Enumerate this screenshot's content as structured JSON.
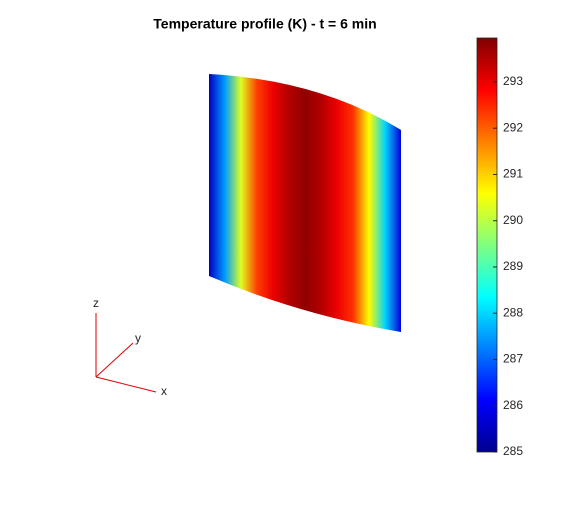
{
  "chart_data": {
    "type": "surface",
    "title": "Temperature profile (K) - t = 6 min",
    "xlabel": "x",
    "ylabel": "y",
    "zlabel": "z",
    "colormap": "jet",
    "clim": [
      285,
      293.95
    ],
    "cticks": [
      285,
      286,
      287,
      288,
      289,
      290,
      291,
      292,
      293
    ],
    "profile": [
      285.6,
      287.5,
      290.3,
      292.3,
      293.0,
      293.5,
      293.8,
      293.5,
      293.0,
      292.4,
      290.6,
      288.0,
      285.8
    ]
  }
}
